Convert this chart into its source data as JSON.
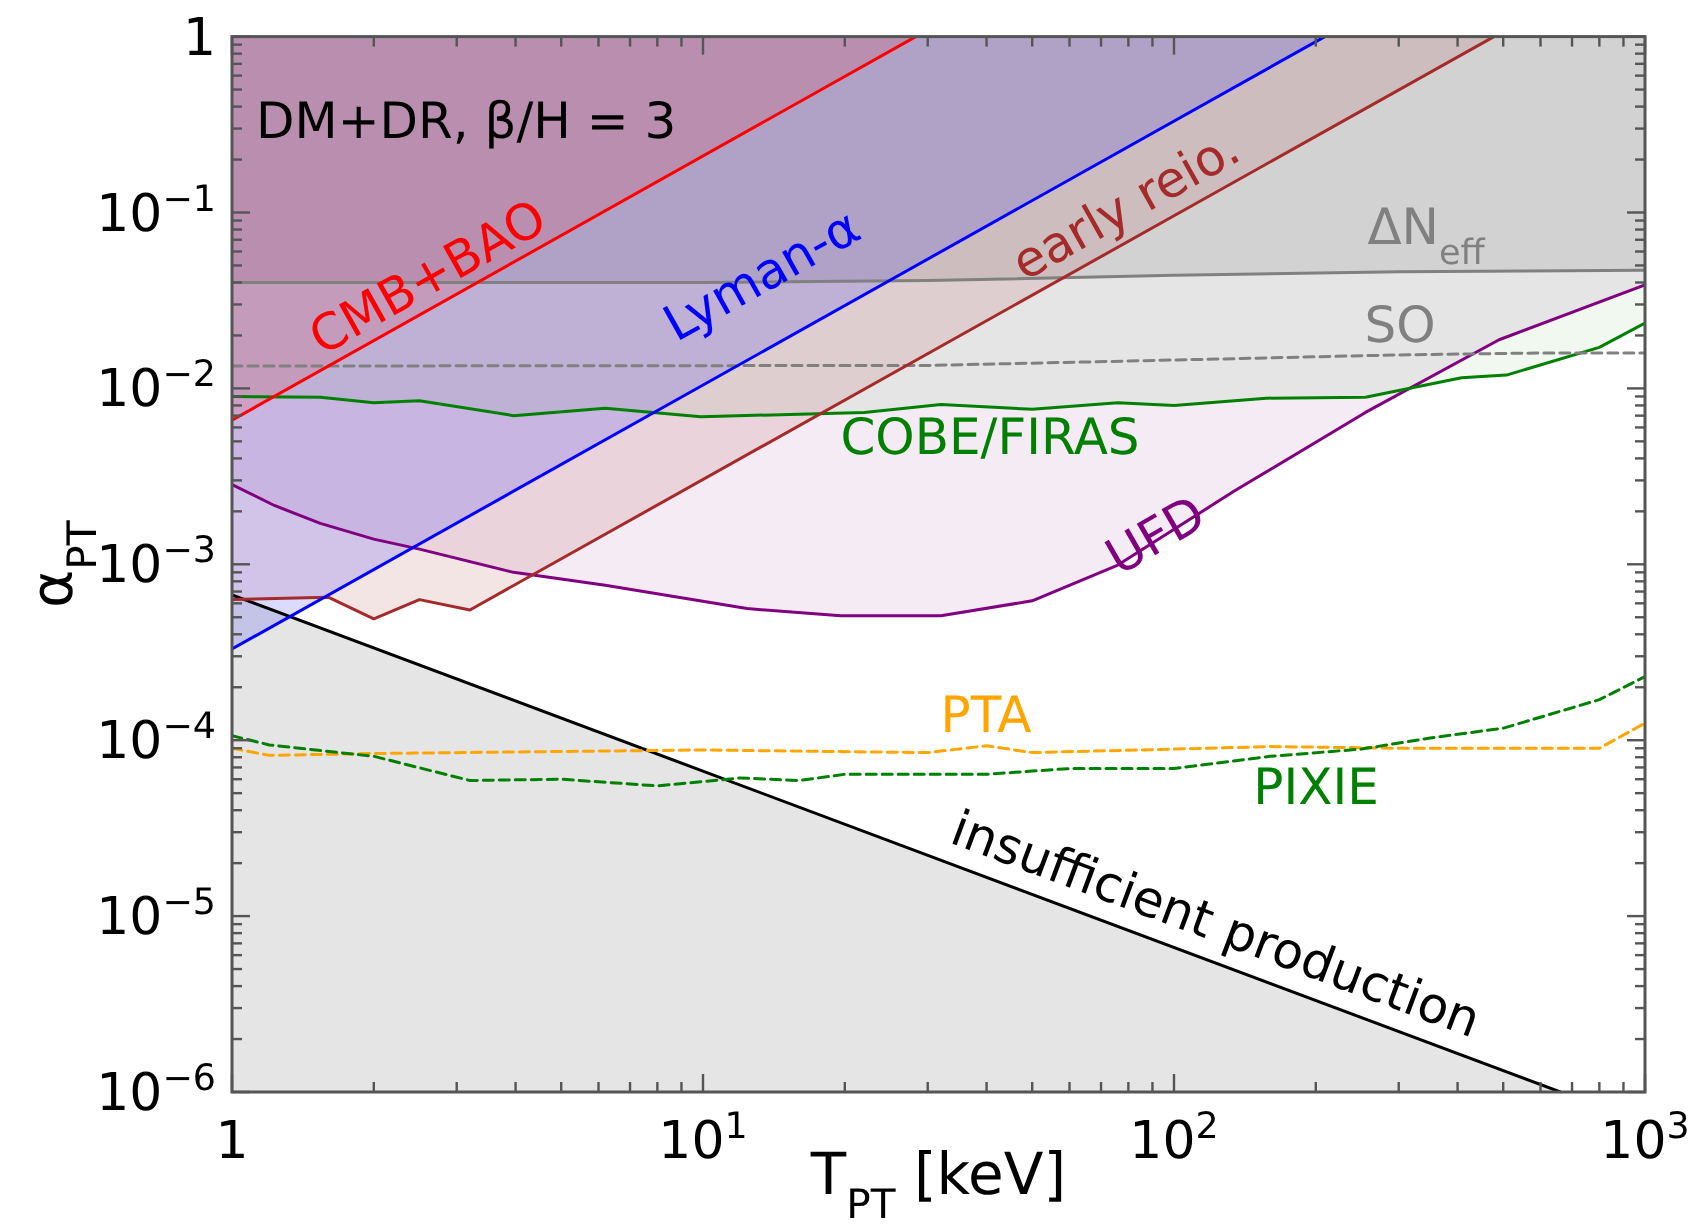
{
  "chart_data": {
    "type": "line",
    "xlabel": "T$_{PT}$ [keV]",
    "ylabel": "α$_{PT}$",
    "log": "xy",
    "xlim": [
      1,
      1000
    ],
    "ylim": [
      1e-06,
      1
    ],
    "xticks": [
      1,
      {
        "value": 10,
        "label": "10$^{1}$"
      },
      {
        "value": 100,
        "label": "10$^{2}$"
      },
      {
        "value": 1000,
        "label": "10$^{3}$"
      }
    ],
    "yticks": [
      {
        "value": 1e-06,
        "label": "10$^{−6}$"
      },
      {
        "value": 1e-05,
        "label": "10$^{−5}$"
      },
      {
        "value": 0.0001,
        "label": "10$^{−4}$"
      },
      {
        "value": 0.001,
        "label": "10$^{−3}$"
      },
      {
        "value": 0.01,
        "label": "10$^{−2}$"
      },
      {
        "value": 0.1,
        "label": "10$^{−1}$"
      },
      1
    ],
    "annotations": [
      "DM+DR, β/H = 3"
    ],
    "series": [
      {
        "name": "insufficient production",
        "color": "#000000",
        "line_style": "solid",
        "x": [
          1,
          661
        ],
        "values": [
          0.00067,
          1e-06
        ],
        "lower": [
          1e-06,
          1e-06
        ],
        "upper": [
          0.00067,
          1e-06
        ]
      },
      {
        "name": "UFD",
        "color": "#800080",
        "line_style": "solid",
        "x": [
          1,
          1.23,
          1.54,
          2,
          2.5,
          3.96,
          6.2,
          12.4,
          19.6,
          32,
          50,
          76,
          134,
          255,
          490,
          1000
        ],
        "values": [
          0.00284,
          0.00216,
          0.00171,
          0.00139,
          0.00122,
          0.0009,
          0.00076,
          0.00056,
          0.00051,
          0.00051,
          0.00062,
          0.00099,
          0.0026,
          0.0073,
          0.0189,
          0.0388
        ],
        "lower": [
          0.00284,
          0.00216,
          0.00171,
          0.00139,
          0.00122,
          0.0009,
          0.00076,
          0.00056,
          0.00051,
          0.00051,
          0.00062,
          0.00099,
          0.0026,
          0.0073,
          0.0189,
          0.0388
        ],
        "upper": [
          1,
          1,
          1,
          1,
          1,
          1,
          1,
          1,
          1,
          1,
          1,
          1,
          1,
          1,
          1,
          1
        ]
      },
      {
        "name": "COBE/FIRAS",
        "color": "#008000",
        "line_style": "solid",
        "x": [
          1,
          1.54,
          2,
          2.5,
          3.96,
          6.2,
          9.9,
          22,
          32,
          50,
          76,
          100,
          157,
          255,
          408,
          508,
          800,
          1000
        ],
        "values": [
          0.009,
          0.0089,
          0.0083,
          0.0085,
          0.007,
          0.0077,
          0.0069,
          0.0073,
          0.0081,
          0.0076,
          0.0083,
          0.008,
          0.0088,
          0.0089,
          0.0115,
          0.0119,
          0.0171,
          0.0235
        ],
        "lower": [
          0.009,
          0.0089,
          0.0083,
          0.0085,
          0.007,
          0.0077,
          0.0069,
          0.0073,
          0.0081,
          0.0076,
          0.0083,
          0.008,
          0.0088,
          0.0089,
          0.0115,
          0.0119,
          0.0171,
          0.0235
        ],
        "upper": [
          1,
          1,
          1,
          1,
          1,
          1,
          1,
          1,
          1,
          1,
          1,
          1,
          1,
          1,
          1,
          1,
          1,
          1
        ]
      },
      {
        "name": "ΔN$_{eff}$",
        "color": "#808080",
        "line_style": "solid",
        "x": [
          1,
          10,
          30,
          100,
          300,
          1000
        ],
        "values": [
          0.04,
          0.04,
          0.041,
          0.044,
          0.046,
          0.047
        ],
        "lower": [
          0.04,
          0.04,
          0.041,
          0.044,
          0.046,
          0.047
        ],
        "upper": [
          1,
          1,
          1,
          1,
          1,
          1
        ]
      },
      {
        "name": "SO",
        "color": "#808080",
        "line_style": "dashed",
        "x": [
          1,
          30,
          100,
          300,
          600,
          1000
        ],
        "values": [
          0.0134,
          0.0135,
          0.0145,
          0.0155,
          0.0159,
          0.0159
        ]
      },
      {
        "name": "early reio.",
        "color": "#a52a2a",
        "line_style": "solid",
        "x": [
          1,
          1.6,
          2,
          2.5,
          3.2,
          478
        ],
        "values": [
          0.00063,
          0.00065,
          0.00049,
          0.00063,
          0.00055,
          1
        ],
        "lower": [
          0.00063,
          0.00065,
          0.00049,
          0.00063,
          0.00055,
          1
        ],
        "upper": [
          1,
          1,
          1,
          1,
          1,
          1
        ]
      },
      {
        "name": "Lyman-α",
        "color": "#0000ff",
        "line_style": "solid",
        "x": [
          1,
          209
        ],
        "values": [
          0.00033,
          1
        ],
        "lower": [
          0.00033,
          1
        ],
        "upper": [
          1,
          1
        ]
      },
      {
        "name": "CMB+BAO",
        "color": "#ff0000",
        "line_style": "solid",
        "x": [
          1,
          28.3
        ],
        "values": [
          0.0066,
          1
        ],
        "lower": [
          0.0066,
          1
        ],
        "upper": [
          1,
          1
        ]
      },
      {
        "name": "PTA",
        "color": "#ffa500",
        "line_style": "dashed",
        "x": [
          1,
          1.2,
          2,
          10,
          30,
          40,
          50,
          100,
          160,
          300,
          800,
          1000
        ],
        "values": [
          9e-05,
          8.2e-05,
          8.4e-05,
          8.8e-05,
          8.5e-05,
          9.3e-05,
          8.5e-05,
          8.9e-05,
          9.2e-05,
          9e-05,
          9e-05,
          0.000125
        ]
      },
      {
        "name": "PIXIE",
        "color": "#008000",
        "line_style": "dashed",
        "x": [
          1,
          1.2,
          2,
          3.2,
          5,
          8,
          12,
          16,
          20,
          40,
          60,
          100,
          160,
          250,
          350,
          500,
          800,
          1000
        ],
        "values": [
          0.000106,
          9.4e-05,
          8.1e-05,
          5.9e-05,
          6e-05,
          5.5e-05,
          6.1e-05,
          5.9e-05,
          6.4e-05,
          6.4e-05,
          6.9e-05,
          6.9e-05,
          8.1e-05,
          8.9e-05,
          0.000103,
          0.000117,
          0.00017,
          0.00023
        ]
      }
    ]
  }
}
